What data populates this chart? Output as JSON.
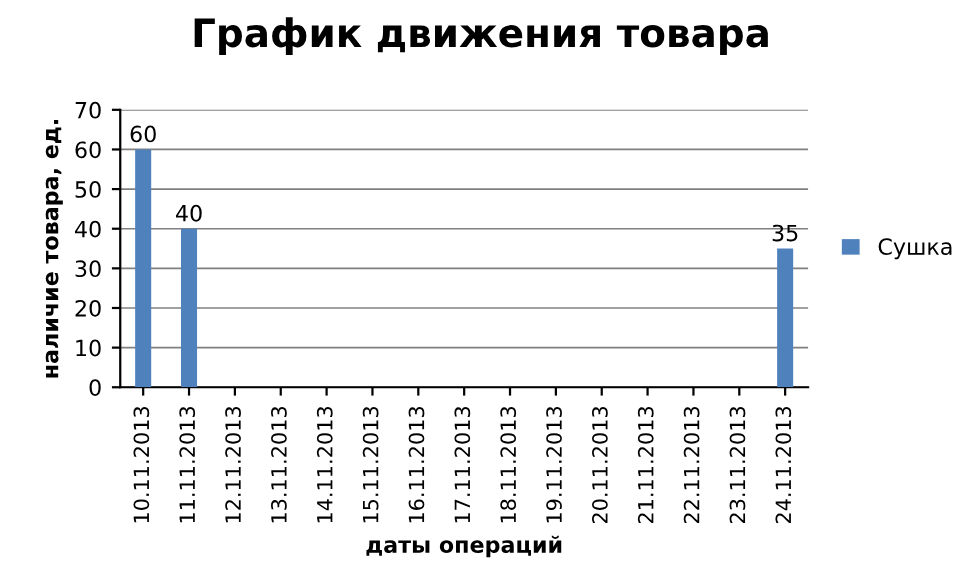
{
  "chart_data": {
    "type": "bar",
    "title": "График движения товара",
    "xlabel": "даты операций",
    "ylabel": "наличие товара, ед.",
    "categories": [
      "10.11.2013",
      "11.11.2013",
      "12.11.2013",
      "13.11.2013",
      "14.11.2013",
      "15.11.2013",
      "16.11.2013",
      "17.11.2013",
      "18.11.2013",
      "19.11.2013",
      "20.11.2013",
      "21.11.2013",
      "22.11.2013",
      "23.11.2013",
      "24.11.2013"
    ],
    "series": [
      {
        "name": "Сушка",
        "color": "#4f81bd",
        "values": [
          60,
          40,
          null,
          null,
          null,
          null,
          null,
          null,
          null,
          null,
          null,
          null,
          null,
          null,
          35
        ]
      }
    ],
    "ylim": [
      0,
      70
    ],
    "yticks": [
      0,
      10,
      20,
      30,
      40,
      50,
      60,
      70
    ],
    "grid": "y",
    "legend": "right",
    "data_labels": true
  }
}
